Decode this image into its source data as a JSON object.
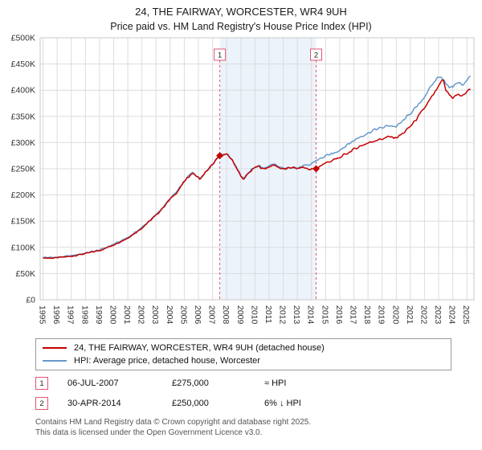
{
  "title": "24, THE FAIRWAY, WORCESTER, WR4 9UH",
  "subtitle": "Price paid vs. HM Land Registry's House Price Index (HPI)",
  "footer": {
    "line1": "Contains HM Land Registry data © Crown copyright and database right 2025.",
    "line2": "This data is licensed under the Open Government Licence v3.0."
  },
  "chart_data": {
    "type": "line",
    "title": "24, THE FAIRWAY, WORCESTER, WR4 9UH",
    "subtitle": "Price paid vs. HM Land Registry's House Price Index (HPI)",
    "xlabel": "",
    "ylabel": "",
    "xlim": [
      1994.8,
      2025.5
    ],
    "ylim": [
      0,
      500000
    ],
    "grid": true,
    "colors": {
      "band": "#dfe9f8",
      "event_line": "#e05575",
      "grid": "#dcdcdc",
      "border": "#c8c8c8",
      "tick_text": "#333333"
    },
    "band": [
      2007.51,
      2014.33
    ],
    "x_ticks": [
      1995,
      1996,
      1997,
      1998,
      1999,
      2000,
      2001,
      2002,
      2003,
      2004,
      2005,
      2006,
      2007,
      2008,
      2009,
      2010,
      2011,
      2012,
      2013,
      2014,
      2015,
      2016,
      2017,
      2018,
      2019,
      2020,
      2021,
      2022,
      2023,
      2024,
      2025
    ],
    "y_ticks": [
      {
        "v": 0,
        "label": "£0"
      },
      {
        "v": 50000,
        "label": "£50K"
      },
      {
        "v": 100000,
        "label": "£100K"
      },
      {
        "v": 150000,
        "label": "£150K"
      },
      {
        "v": 200000,
        "label": "£200K"
      },
      {
        "v": 250000,
        "label": "£250K"
      },
      {
        "v": 300000,
        "label": "£300K"
      },
      {
        "v": 350000,
        "label": "£350K"
      },
      {
        "v": 400000,
        "label": "£400K"
      },
      {
        "v": 450000,
        "label": "£450K"
      },
      {
        "v": 500000,
        "label": "£500K"
      }
    ],
    "series": [
      {
        "name": "24, THE FAIRWAY, WORCESTER, WR4 9UH (detached house)",
        "color": "#c40000",
        "points": [
          [
            1995.0,
            80000
          ],
          [
            1995.5,
            79500
          ],
          [
            1996.0,
            80000
          ],
          [
            1996.5,
            81500
          ],
          [
            1997.0,
            83000
          ],
          [
            1997.5,
            85500
          ],
          [
            1998.0,
            88000
          ],
          [
            1998.5,
            91000
          ],
          [
            1999.0,
            94000
          ],
          [
            1999.5,
            99000
          ],
          [
            2000.0,
            105000
          ],
          [
            2000.5,
            111000
          ],
          [
            2001.0,
            118000
          ],
          [
            2001.5,
            127000
          ],
          [
            2002.0,
            137000
          ],
          [
            2002.5,
            149000
          ],
          [
            2003.0,
            161000
          ],
          [
            2003.5,
            176000
          ],
          [
            2004.0,
            192000
          ],
          [
            2004.5,
            206000
          ],
          [
            2005.0,
            225000
          ],
          [
            2005.3,
            235000
          ],
          [
            2005.6,
            242000
          ],
          [
            2005.9,
            235000
          ],
          [
            2006.1,
            230000
          ],
          [
            2006.5,
            243000
          ],
          [
            2007.0,
            258000
          ],
          [
            2007.51,
            275000
          ],
          [
            2007.8,
            277000
          ],
          [
            2008.1,
            276000
          ],
          [
            2008.4,
            266000
          ],
          [
            2008.7,
            252000
          ],
          [
            2009.0,
            235000
          ],
          [
            2009.2,
            230000
          ],
          [
            2009.5,
            240000
          ],
          [
            2009.8,
            248000
          ],
          [
            2010.0,
            252000
          ],
          [
            2010.3,
            255000
          ],
          [
            2010.6,
            249000
          ],
          [
            2011.0,
            254000
          ],
          [
            2011.4,
            257000
          ],
          [
            2011.8,
            251000
          ],
          [
            2012.2,
            249000
          ],
          [
            2012.6,
            253000
          ],
          [
            2013.0,
            250000
          ],
          [
            2013.4,
            253000
          ],
          [
            2013.8,
            249000
          ],
          [
            2014.33,
            250000
          ],
          [
            2014.7,
            257000
          ],
          [
            2015.0,
            261000
          ],
          [
            2015.5,
            266000
          ],
          [
            2016.0,
            271000
          ],
          [
            2016.5,
            279000
          ],
          [
            2017.0,
            287000
          ],
          [
            2017.5,
            294000
          ],
          [
            2018.0,
            299000
          ],
          [
            2018.5,
            304000
          ],
          [
            2019.0,
            307000
          ],
          [
            2019.5,
            311000
          ],
          [
            2020.0,
            309000
          ],
          [
            2020.5,
            318000
          ],
          [
            2021.0,
            331000
          ],
          [
            2021.5,
            347000
          ],
          [
            2022.0,
            366000
          ],
          [
            2022.5,
            386000
          ],
          [
            2022.8,
            398000
          ],
          [
            2023.1,
            412000
          ],
          [
            2023.3,
            420000
          ],
          [
            2023.5,
            400000
          ],
          [
            2023.8,
            390000
          ],
          [
            2024.0,
            386000
          ],
          [
            2024.4,
            392000
          ],
          [
            2024.7,
            388000
          ],
          [
            2025.0,
            398000
          ],
          [
            2025.3,
            403000
          ]
        ]
      },
      {
        "name": "HPI: Average price, detached house, Worcester",
        "color": "#6699cc",
        "points": [
          [
            1995.0,
            81000
          ],
          [
            1995.5,
            80500
          ],
          [
            1996.0,
            81000
          ],
          [
            1996.5,
            82500
          ],
          [
            1997.0,
            84000
          ],
          [
            1997.5,
            86500
          ],
          [
            1998.0,
            89000
          ],
          [
            1998.5,
            92000
          ],
          [
            1999.0,
            95000
          ],
          [
            1999.5,
            100000
          ],
          [
            2000.0,
            106000
          ],
          [
            2000.5,
            112000
          ],
          [
            2001.0,
            119000
          ],
          [
            2001.5,
            128000
          ],
          [
            2002.0,
            138000
          ],
          [
            2002.5,
            150000
          ],
          [
            2003.0,
            162000
          ],
          [
            2003.5,
            177000
          ],
          [
            2004.0,
            193000
          ],
          [
            2004.5,
            207000
          ],
          [
            2005.0,
            226000
          ],
          [
            2005.3,
            236000
          ],
          [
            2005.6,
            243000
          ],
          [
            2005.9,
            236000
          ],
          [
            2006.1,
            231000
          ],
          [
            2006.5,
            244000
          ],
          [
            2007.0,
            259000
          ],
          [
            2007.51,
            276000
          ],
          [
            2007.8,
            278000
          ],
          [
            2008.1,
            277000
          ],
          [
            2008.4,
            267000
          ],
          [
            2008.7,
            253000
          ],
          [
            2009.0,
            236000
          ],
          [
            2009.2,
            231000
          ],
          [
            2009.5,
            241000
          ],
          [
            2009.8,
            249000
          ],
          [
            2010.0,
            253000
          ],
          [
            2010.3,
            256000
          ],
          [
            2010.6,
            250000
          ],
          [
            2011.0,
            255000
          ],
          [
            2011.4,
            258000
          ],
          [
            2011.8,
            252000
          ],
          [
            2012.2,
            250000
          ],
          [
            2012.6,
            254000
          ],
          [
            2013.0,
            251000
          ],
          [
            2013.4,
            255000
          ],
          [
            2013.8,
            256000
          ],
          [
            2014.33,
            266000
          ],
          [
            2014.7,
            270000
          ],
          [
            2015.0,
            274000
          ],
          [
            2015.5,
            279000
          ],
          [
            2016.0,
            286000
          ],
          [
            2016.5,
            295000
          ],
          [
            2017.0,
            304000
          ],
          [
            2017.5,
            312000
          ],
          [
            2018.0,
            318000
          ],
          [
            2018.5,
            325000
          ],
          [
            2019.0,
            328000
          ],
          [
            2019.5,
            333000
          ],
          [
            2020.0,
            330000
          ],
          [
            2020.5,
            342000
          ],
          [
            2021.0,
            356000
          ],
          [
            2021.5,
            369000
          ],
          [
            2022.0,
            388000
          ],
          [
            2022.5,
            408000
          ],
          [
            2022.8,
            420000
          ],
          [
            2023.1,
            428000
          ],
          [
            2023.3,
            422000
          ],
          [
            2023.5,
            412000
          ],
          [
            2023.8,
            405000
          ],
          [
            2024.0,
            408000
          ],
          [
            2024.4,
            414000
          ],
          [
            2024.7,
            410000
          ],
          [
            2025.0,
            420000
          ],
          [
            2025.3,
            427000
          ]
        ]
      }
    ],
    "events": [
      {
        "n": "1",
        "x": 2007.51,
        "y": 275000,
        "date": "06-JUL-2007",
        "price": "£275,000",
        "hpi": "≈ HPI"
      },
      {
        "n": "2",
        "x": 2014.33,
        "y": 250000,
        "date": "30-APR-2014",
        "price": "£250,000",
        "hpi": "6% ↓ HPI"
      }
    ]
  }
}
